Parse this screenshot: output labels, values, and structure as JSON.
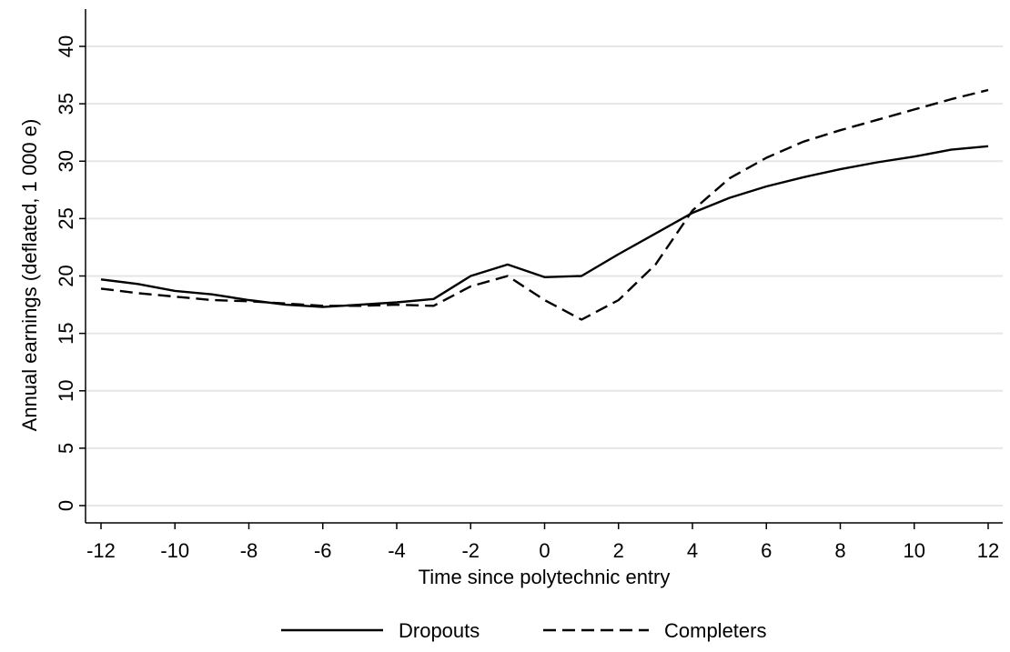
{
  "chart_data": {
    "type": "line",
    "xlabel": "Time since polytechnic entry",
    "ylabel": "Annual earnings (deflated, 1 000 e)",
    "xlim": [
      -12,
      12
    ],
    "ylim": [
      0,
      40
    ],
    "x_ticks": [
      -12,
      -10,
      -8,
      -6,
      -4,
      -2,
      0,
      2,
      4,
      6,
      8,
      10,
      12
    ],
    "y_ticks": [
      0,
      5,
      10,
      15,
      20,
      25,
      30,
      35,
      40
    ],
    "grid": "horizontal",
    "legend_position": "bottom",
    "x": [
      -12,
      -11,
      -10,
      -9,
      -8,
      -7,
      -6,
      -5,
      -4,
      -3,
      -2,
      -1,
      0,
      1,
      2,
      3,
      4,
      5,
      6,
      7,
      8,
      9,
      10,
      11,
      12
    ],
    "series": [
      {
        "name": "Dropouts",
        "style": "solid",
        "values": [
          19.7,
          19.3,
          18.7,
          18.4,
          17.9,
          17.5,
          17.3,
          17.5,
          17.7,
          18.0,
          20.0,
          21.0,
          19.9,
          20.0,
          21.9,
          23.7,
          25.5,
          26.8,
          27.8,
          28.6,
          29.3,
          29.9,
          30.4,
          31.0,
          31.3
        ]
      },
      {
        "name": "Completers",
        "style": "dashed",
        "values": [
          18.9,
          18.5,
          18.2,
          17.9,
          17.8,
          17.6,
          17.4,
          17.4,
          17.5,
          17.4,
          19.1,
          20.0,
          17.9,
          16.2,
          17.9,
          21.0,
          25.7,
          28.5,
          30.3,
          31.7,
          32.7,
          33.6,
          34.5,
          35.4,
          36.2
        ]
      }
    ]
  }
}
